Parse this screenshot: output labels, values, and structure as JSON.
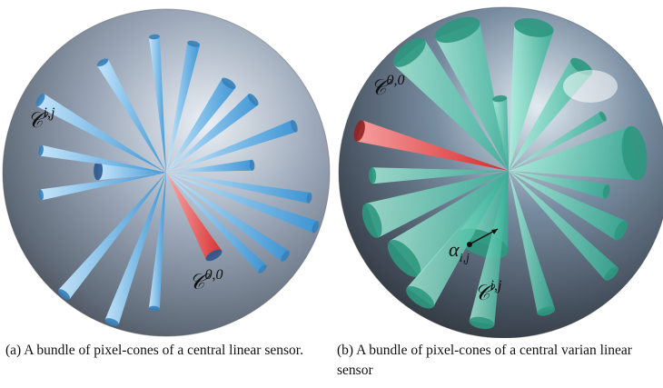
{
  "panels": [
    {
      "labels": [
        {
          "base": "𝒞",
          "sup": "i,j"
        },
        {
          "base": "𝒞",
          "sup": "0,0"
        }
      ],
      "caption": "(a) A bundle of pixel-cones of a central linear sensor."
    },
    {
      "labels": [
        {
          "base": "𝒞",
          "sup": "0,0"
        },
        {
          "base": "α",
          "sub": "i,j"
        },
        {
          "base": "𝒞",
          "sup": "i,j"
        }
      ],
      "caption": "(b) A bundle of pixel-cones of a central varian linear sensor"
    }
  ]
}
